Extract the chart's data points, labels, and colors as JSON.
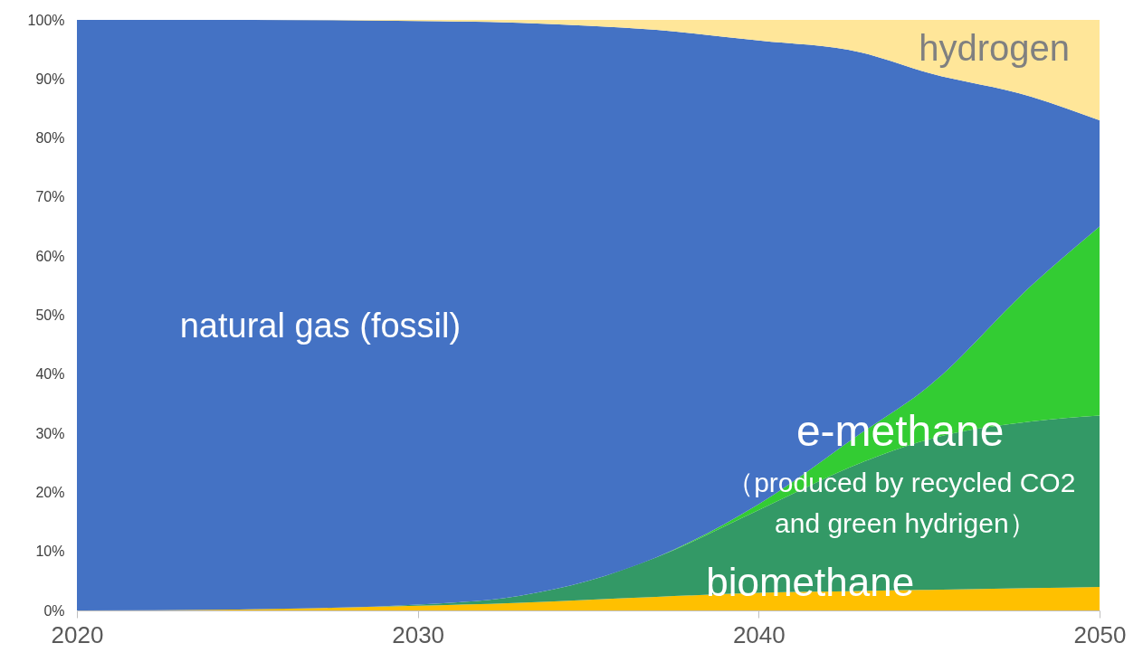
{
  "chart_data": {
    "type": "area",
    "stacked": true,
    "x": [
      2020,
      2025,
      2030,
      2033,
      2035,
      2037,
      2040,
      2043,
      2045,
      2048,
      2050
    ],
    "series": [
      {
        "color": "#ffc000",
        "values": [
          0,
          0.2,
          0.8,
          1.3,
          1.8,
          2.3,
          3,
          3.3,
          3.5,
          3.8,
          4
        ]
      },
      {
        "color": "#339966",
        "values": [
          0,
          0,
          0.2,
          1.2,
          3.2,
          6.7,
          14,
          21.7,
          25.5,
          28.2,
          29
        ]
      },
      {
        "color": "#33cc33",
        "values": [
          0,
          0,
          0,
          0,
          0,
          0,
          1,
          5,
          9,
          23,
          32
        ]
      },
      {
        "color": "#4472c4",
        "values": [
          100,
          99.8,
          98.8,
          97,
          94,
          89.3,
          78.5,
          64.5,
          53,
          32,
          18
        ]
      },
      {
        "color": "#ffe699",
        "values": [
          0,
          0,
          0.2,
          0.5,
          1,
          1.7,
          3.5,
          5.5,
          9,
          13,
          17
        ]
      }
    ],
    "xlim": [
      2020,
      2050
    ],
    "xticks": [
      2020,
      2030,
      2040,
      2050
    ],
    "ylim": [
      0,
      100
    ],
    "yticks": [
      {
        "value": 0,
        "label": "0%"
      },
      {
        "value": 10,
        "label": "10%"
      },
      {
        "value": 20,
        "label": "20%"
      },
      {
        "value": 30,
        "label": "30%"
      },
      {
        "value": 40,
        "label": "40%"
      },
      {
        "value": 50,
        "label": "50%"
      },
      {
        "value": 60,
        "label": "60%"
      },
      {
        "value": 70,
        "label": "70%"
      },
      {
        "value": 80,
        "label": "80%"
      },
      {
        "value": 90,
        "label": "90%"
      },
      {
        "value": 100,
        "label": "100%"
      }
    ],
    "annotations": [
      "hydrogen",
      "natural gas (fossil)",
      "e-methane",
      "（produced by recycled CO2",
      "and green hydrigen）",
      "biomethane"
    ]
  }
}
